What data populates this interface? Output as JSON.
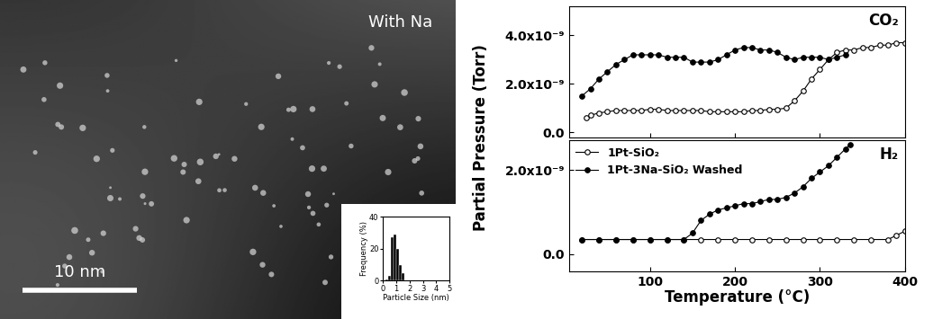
{
  "image": {
    "label": "With Na",
    "scale_bar": "10 nm"
  },
  "chart_data": [
    {
      "type": "histogram",
      "xlabel": "Particle Size (nm)",
      "ylabel": "Frequency (%)",
      "bins": [
        0.2,
        0.4,
        0.6,
        0.8,
        1.0,
        1.2,
        1.4,
        1.6
      ],
      "counts": [
        1,
        3,
        27,
        29,
        20,
        10,
        5
      ],
      "color": "#000000",
      "xlim": [
        0,
        5
      ],
      "xticks": [
        0,
        1,
        2,
        3,
        4,
        5
      ],
      "ylim": [
        0,
        40
      ],
      "yticks": [
        0,
        20,
        40
      ]
    },
    {
      "type": "line",
      "ylabel": "Partial Pressure (Torr)",
      "annotation": "CO₂",
      "tick_labels": "y",
      "xlim": [
        5,
        400
      ],
      "xticks": [
        100,
        200,
        300,
        400
      ],
      "ylim": [
        -2e-10,
        5.2e-09
      ],
      "yticks": [
        {
          "value": 0,
          "label": "0.0"
        },
        {
          "value": 2e-09,
          "label": "2.0x10⁻⁹"
        },
        {
          "value": 4e-09,
          "label": "4.0x10⁻⁹"
        }
      ],
      "series": [
        {
          "color": "#000000",
          "marker": "open_circle",
          "line_style": "solid",
          "x": [
            25,
            30,
            40,
            50,
            60,
            70,
            80,
            90,
            100,
            110,
            120,
            130,
            140,
            150,
            160,
            170,
            180,
            190,
            200,
            210,
            220,
            230,
            240,
            250,
            260,
            270,
            280,
            290,
            300,
            310,
            320,
            330,
            340,
            350,
            360,
            370,
            380,
            390,
            400
          ],
          "values": [
            6e-10,
            7e-10,
            8e-10,
            8.5e-10,
            9e-10,
            9e-10,
            9e-10,
            9e-10,
            9.5e-10,
            9.5e-10,
            9e-10,
            9e-10,
            9e-10,
            9e-10,
            9e-10,
            8.5e-10,
            8.5e-10,
            8.5e-10,
            8.5e-10,
            8.5e-10,
            9e-10,
            9e-10,
            9.5e-10,
            9.5e-10,
            1e-09,
            1.3e-09,
            1.7e-09,
            2.2e-09,
            2.6e-09,
            3e-09,
            3.3e-09,
            3.4e-09,
            3.4e-09,
            3.5e-09,
            3.5e-09,
            3.6e-09,
            3.6e-09,
            3.7e-09,
            3.7e-09
          ]
        },
        {
          "color": "#000000",
          "marker": "circle",
          "line_style": "solid",
          "x": [
            20,
            30,
            40,
            50,
            60,
            70,
            80,
            90,
            100,
            110,
            120,
            130,
            140,
            150,
            160,
            170,
            180,
            190,
            200,
            210,
            220,
            230,
            240,
            250,
            260,
            270,
            280,
            290,
            300,
            310,
            320,
            330
          ],
          "values": [
            1.5e-09,
            1.8e-09,
            2.2e-09,
            2.5e-09,
            2.8e-09,
            3e-09,
            3.2e-09,
            3.2e-09,
            3.2e-09,
            3.2e-09,
            3.1e-09,
            3.1e-09,
            3.1e-09,
            2.9e-09,
            2.9e-09,
            2.9e-09,
            3e-09,
            3.2e-09,
            3.4e-09,
            3.5e-09,
            3.5e-09,
            3.4e-09,
            3.4e-09,
            3.3e-09,
            3.1e-09,
            3e-09,
            3.1e-09,
            3.1e-09,
            3.1e-09,
            3e-09,
            3.1e-09,
            3.2e-09
          ]
        }
      ]
    },
    {
      "type": "line",
      "xlabel": "Temperature (°C)",
      "annotation": "H₂",
      "legend": "upper left",
      "xlim": [
        5,
        400
      ],
      "xticks": [
        100,
        200,
        300,
        400
      ],
      "ylim": [
        -4e-10,
        2.7e-09
      ],
      "yticks": [
        {
          "value": 0,
          "label": "0.0"
        },
        {
          "value": 2e-09,
          "label": "2.0x10⁻⁹"
        }
      ],
      "series": [
        {
          "name": "1Pt-SiO₂",
          "color": "#000000",
          "marker": "open_circle",
          "line_style": "solid",
          "x": [
            20,
            40,
            60,
            80,
            100,
            120,
            140,
            160,
            180,
            200,
            220,
            240,
            260,
            280,
            300,
            320,
            340,
            360,
            380,
            390,
            400
          ],
          "values": [
            3.5e-10,
            3.5e-10,
            3.5e-10,
            3.5e-10,
            3.5e-10,
            3.5e-10,
            3.5e-10,
            3.5e-10,
            3.5e-10,
            3.5e-10,
            3.5e-10,
            3.5e-10,
            3.5e-10,
            3.5e-10,
            3.5e-10,
            3.5e-10,
            3.5e-10,
            3.5e-10,
            3.5e-10,
            4.5e-10,
            5.5e-10
          ]
        },
        {
          "name": "1Pt-3Na-SiO₂ Washed",
          "color": "#000000",
          "marker": "circle",
          "line_style": "solid",
          "x": [
            20,
            40,
            60,
            80,
            100,
            120,
            140,
            150,
            160,
            170,
            180,
            190,
            200,
            210,
            220,
            230,
            240,
            250,
            260,
            270,
            280,
            290,
            300,
            310,
            320,
            330,
            335
          ],
          "values": [
            3.5e-10,
            3.5e-10,
            3.5e-10,
            3.5e-10,
            3.5e-10,
            3.5e-10,
            3.5e-10,
            5e-10,
            8e-10,
            9.5e-10,
            1.05e-09,
            1.1e-09,
            1.15e-09,
            1.2e-09,
            1.2e-09,
            1.25e-09,
            1.3e-09,
            1.3e-09,
            1.35e-09,
            1.45e-09,
            1.6e-09,
            1.8e-09,
            1.95e-09,
            2.1e-09,
            2.3e-09,
            2.5e-09,
            2.6e-09
          ]
        }
      ]
    }
  ]
}
